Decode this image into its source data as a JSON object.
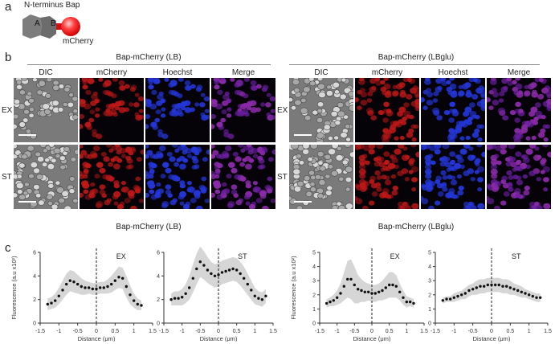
{
  "panel_a": {
    "letter": "a",
    "title": "N-terminus Bap",
    "domain_a": "A",
    "domain_b": "B",
    "tag": "mCherry"
  },
  "panel_b": {
    "letter": "b",
    "groups": [
      {
        "title": "Bap-mCherry (LB)",
        "columns": [
          "DIC",
          "mCherry",
          "Hoechst",
          "Merge"
        ]
      },
      {
        "title": "Bap-mCherry (LBglu)",
        "columns": [
          "DIC",
          "mCherry",
          "Hoechst",
          "Merge"
        ]
      }
    ],
    "rows": [
      "EX",
      "ST"
    ],
    "colors": {
      "dic": "#8a8a8a",
      "mcherry": "#c01818",
      "hoechst": "#2436d8",
      "merge": "#8a2aa8"
    }
  },
  "panel_c": {
    "letter": "c",
    "group_titles": [
      "Bap-mCherry (LB)",
      "Bap-mCherry (LBglu)"
    ]
  },
  "chart_data": [
    {
      "type": "line",
      "title": "EX",
      "group": "Bap-mCherry (LB)",
      "xlabel": "Distance (μm)",
      "ylabel": "Fluorescence (a.u x10²)",
      "xlim": [
        -1.5,
        1.5
      ],
      "ylim": [
        0,
        6
      ],
      "xticks": [
        "-1.5",
        "-1",
        "-0.5",
        "0",
        "0.5",
        "1",
        "1.5"
      ],
      "yticks": [
        "0",
        "2",
        "4",
        "6"
      ],
      "x": [
        -1.3,
        -1.2,
        -1.1,
        -1.0,
        -0.9,
        -0.8,
        -0.7,
        -0.6,
        -0.5,
        -0.4,
        -0.3,
        -0.2,
        -0.1,
        0.0,
        0.1,
        0.2,
        0.3,
        0.4,
        0.5,
        0.6,
        0.7,
        0.8,
        0.9,
        1.0,
        1.1,
        1.2
      ],
      "y": [
        1.6,
        1.7,
        1.9,
        2.3,
        2.8,
        3.3,
        3.6,
        3.5,
        3.3,
        3.1,
        3.0,
        3.0,
        2.9,
        2.9,
        3.0,
        3.0,
        3.1,
        3.3,
        3.6,
        3.9,
        3.8,
        3.1,
        2.4,
        1.9,
        1.6,
        1.5
      ],
      "band": [
        0.5,
        0.5,
        0.6,
        0.7,
        0.8,
        0.9,
        0.9,
        0.9,
        0.8,
        0.7,
        0.6,
        0.5,
        0.5,
        0.5,
        0.5,
        0.5,
        0.6,
        0.7,
        0.8,
        0.9,
        0.9,
        0.9,
        0.8,
        0.6,
        0.5,
        0.4
      ]
    },
    {
      "type": "line",
      "title": "ST",
      "group": "Bap-mCherry (LB)",
      "xlabel": "Distance (μm)",
      "ylabel": "",
      "xlim": [
        -1.5,
        1.5
      ],
      "ylim": [
        0,
        6
      ],
      "xticks": [
        "-1.5",
        "-1",
        "-0.5",
        "0",
        "0.5",
        "1",
        "1.5"
      ],
      "yticks": [
        "0",
        "2",
        "4",
        "6"
      ],
      "x": [
        -1.3,
        -1.2,
        -1.1,
        -1.0,
        -0.9,
        -0.8,
        -0.7,
        -0.6,
        -0.5,
        -0.4,
        -0.3,
        -0.2,
        -0.1,
        0.0,
        0.1,
        0.2,
        0.3,
        0.4,
        0.5,
        0.6,
        0.7,
        0.8,
        0.9,
        1.0,
        1.1,
        1.2,
        1.3
      ],
      "y": [
        2.0,
        2.1,
        2.1,
        2.2,
        2.5,
        3.0,
        3.8,
        4.6,
        5.2,
        4.9,
        4.5,
        4.2,
        4.0,
        4.1,
        4.3,
        4.4,
        4.5,
        4.6,
        4.5,
        4.2,
        3.8,
        3.3,
        2.8,
        2.3,
        2.1,
        2.0,
        2.3
      ],
      "band": [
        0.5,
        0.6,
        0.6,
        0.7,
        0.8,
        1.0,
        1.2,
        1.3,
        1.3,
        1.2,
        1.1,
        1.0,
        1.0,
        1.0,
        1.0,
        1.0,
        1.0,
        1.0,
        1.0,
        1.0,
        1.0,
        0.9,
        0.8,
        0.7,
        0.6,
        0.6,
        0.6
      ]
    },
    {
      "type": "line",
      "title": "EX",
      "group": "Bap-mCherry (LBglu)",
      "xlabel": "Distance (μm)",
      "ylabel": "Fluorescence (a.u x10²)",
      "xlim": [
        -1.5,
        1.5
      ],
      "ylim": [
        0,
        5
      ],
      "xticks": [
        "-1.5",
        "-1",
        "-0.5",
        "0",
        "0.5",
        "1",
        "1.5"
      ],
      "yticks": [
        "0",
        "1",
        "2",
        "3",
        "4",
        "5"
      ],
      "x": [
        -1.3,
        -1.2,
        -1.1,
        -1.0,
        -0.9,
        -0.8,
        -0.7,
        -0.6,
        -0.5,
        -0.4,
        -0.3,
        -0.2,
        -0.1,
        0.0,
        0.1,
        0.2,
        0.3,
        0.4,
        0.5,
        0.6,
        0.7,
        0.8,
        0.9,
        1.0,
        1.1,
        1.2
      ],
      "y": [
        1.4,
        1.5,
        1.6,
        1.8,
        2.1,
        2.6,
        3.1,
        3.1,
        2.7,
        2.4,
        2.3,
        2.2,
        2.2,
        2.1,
        2.1,
        2.2,
        2.3,
        2.5,
        2.7,
        2.7,
        2.6,
        2.2,
        1.8,
        1.5,
        1.5,
        1.4
      ],
      "band": [
        0.3,
        0.3,
        0.4,
        0.5,
        0.7,
        1.0,
        1.3,
        1.4,
        1.3,
        1.0,
        0.8,
        0.7,
        0.6,
        0.6,
        0.6,
        0.6,
        0.7,
        0.8,
        0.9,
        0.9,
        0.8,
        0.6,
        0.5,
        0.4,
        0.3,
        0.3
      ]
    },
    {
      "type": "line",
      "title": "ST",
      "group": "Bap-mCherry (LBglu)",
      "xlabel": "Distance (μm)",
      "ylabel": "",
      "xlim": [
        -1.5,
        1.5
      ],
      "ylim": [
        0,
        5
      ],
      "xticks": [
        "-1.5",
        "-1",
        "-0.5",
        "0",
        "0.5",
        "1",
        "1.5"
      ],
      "yticks": [
        "0",
        "1",
        "2",
        "3",
        "4",
        "5"
      ],
      "x": [
        -1.3,
        -1.2,
        -1.1,
        -1.0,
        -0.9,
        -0.8,
        -0.7,
        -0.6,
        -0.5,
        -0.4,
        -0.3,
        -0.2,
        -0.1,
        0.0,
        0.1,
        0.2,
        0.3,
        0.4,
        0.5,
        0.6,
        0.7,
        0.8,
        0.9,
        1.0,
        1.1,
        1.2,
        1.3
      ],
      "y": [
        1.6,
        1.7,
        1.7,
        1.8,
        1.9,
        2.0,
        2.1,
        2.3,
        2.4,
        2.5,
        2.6,
        2.6,
        2.7,
        2.7,
        2.7,
        2.7,
        2.6,
        2.6,
        2.5,
        2.4,
        2.3,
        2.2,
        2.1,
        2.0,
        1.9,
        1.8,
        1.8
      ],
      "band": [
        0.2,
        0.2,
        0.2,
        0.3,
        0.3,
        0.3,
        0.4,
        0.4,
        0.4,
        0.5,
        0.5,
        0.5,
        0.5,
        0.5,
        0.5,
        0.5,
        0.5,
        0.5,
        0.5,
        0.4,
        0.4,
        0.4,
        0.3,
        0.3,
        0.3,
        0.3,
        0.3
      ]
    }
  ]
}
